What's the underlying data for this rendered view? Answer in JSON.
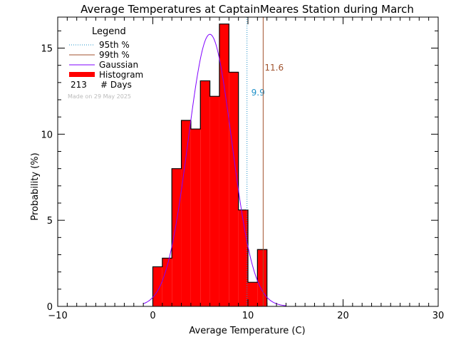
{
  "chart_data": {
    "type": "bar",
    "title": "Average Temperatures at CaptainMeares Station during March",
    "xlabel": "Average Temperature (C)",
    "ylabel": "Probability  (%)",
    "xlim": [
      -10,
      30
    ],
    "ylim": [
      0,
      16.8
    ],
    "x_ticks": [
      -10,
      0,
      10,
      20,
      30
    ],
    "y_ticks": [
      0,
      5,
      10,
      15
    ],
    "grid": false,
    "legend_position": "top-left",
    "legend": {
      "title": "Legend",
      "p95_label": "95th %",
      "p99_label": "99th %",
      "gaussian_label": "Gaussian",
      "histogram_label": "Histogram",
      "days_count": "213",
      "days_label": "# Days",
      "credit": "Made on 29 May 2025"
    },
    "histogram": {
      "bin_width": 1,
      "bin_starts": [
        0,
        1,
        2,
        3,
        4,
        5,
        6,
        7,
        8,
        9,
        10,
        11
      ],
      "values": [
        2.3,
        2.8,
        8.0,
        10.8,
        10.3,
        13.1,
        12.2,
        16.4,
        13.6,
        5.6,
        1.4,
        3.3
      ],
      "color": "#ff0000"
    },
    "gaussian": {
      "mean": 6.0,
      "sigma": 2.3,
      "peak": 15.8,
      "x_range": [
        -1,
        14
      ],
      "color": "#7f00ff"
    },
    "percentiles": [
      {
        "name": "95th %",
        "value": 9.9,
        "label": "9.9",
        "color": "#1e90c8",
        "style": "dotted"
      },
      {
        "name": "99th %",
        "value": 11.6,
        "label": "11.6",
        "color": "#a0522d",
        "style": "solid"
      }
    ]
  }
}
